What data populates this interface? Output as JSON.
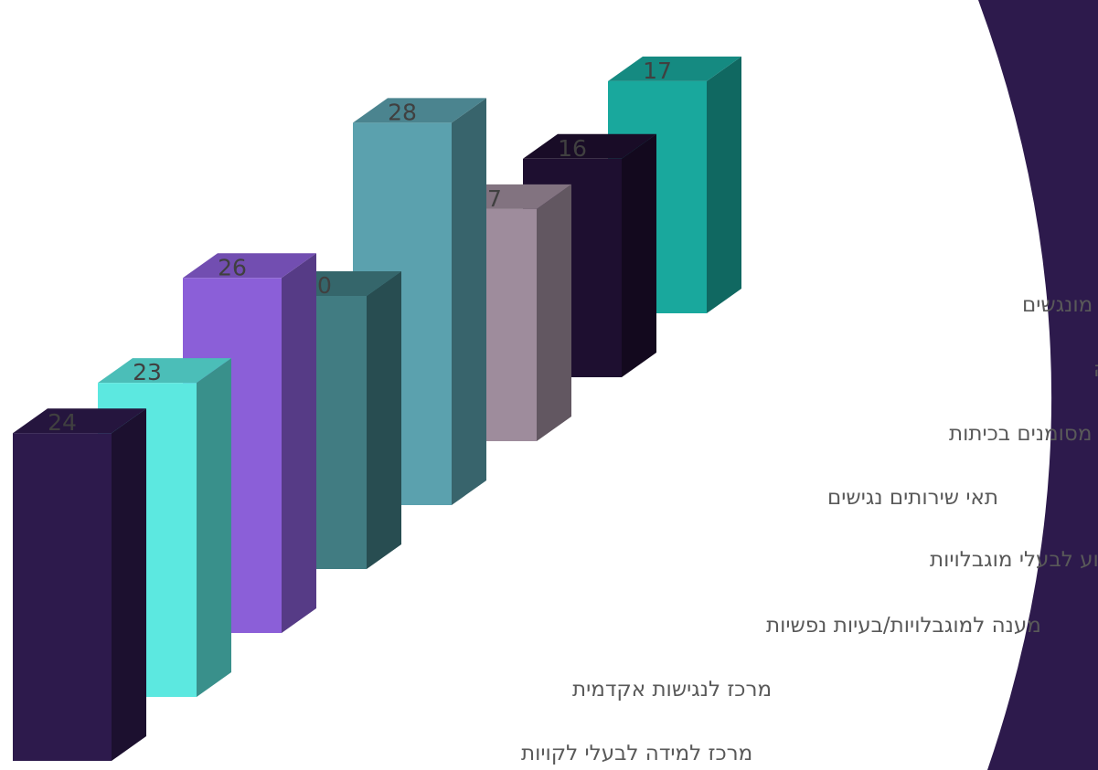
{
  "chart_data": {
    "type": "bar",
    "style": "3d-columns",
    "categories": [
      "מרכז למידה לבעלי לקויות",
      "מרכז לנגישות אקדמית",
      "מענה למוגבלויות/בעיות נפשיות",
      "עזרים טכנולוגים לסיוע לבעלי מוגבלויות",
      "תאי שירותים נגישים",
      "מקומות מסומנים בכיתות",
      "מרכז נגישות/מענה אחר באגודה",
      "אירועים מונגשים"
    ],
    "values": [
      24,
      23,
      26,
      20,
      28,
      17,
      16,
      17
    ],
    "colors": [
      "#2d1a4c",
      "#5ce8e0",
      "#8b5fd8",
      "#417c82",
      "#5ba1ae",
      "#9e8c9c",
      "#1e0f30",
      "#19a89d"
    ],
    "data_labels": true,
    "grid": false,
    "legend": "none"
  },
  "theme": {
    "accent_arc_color": "#2d1a4c"
  }
}
